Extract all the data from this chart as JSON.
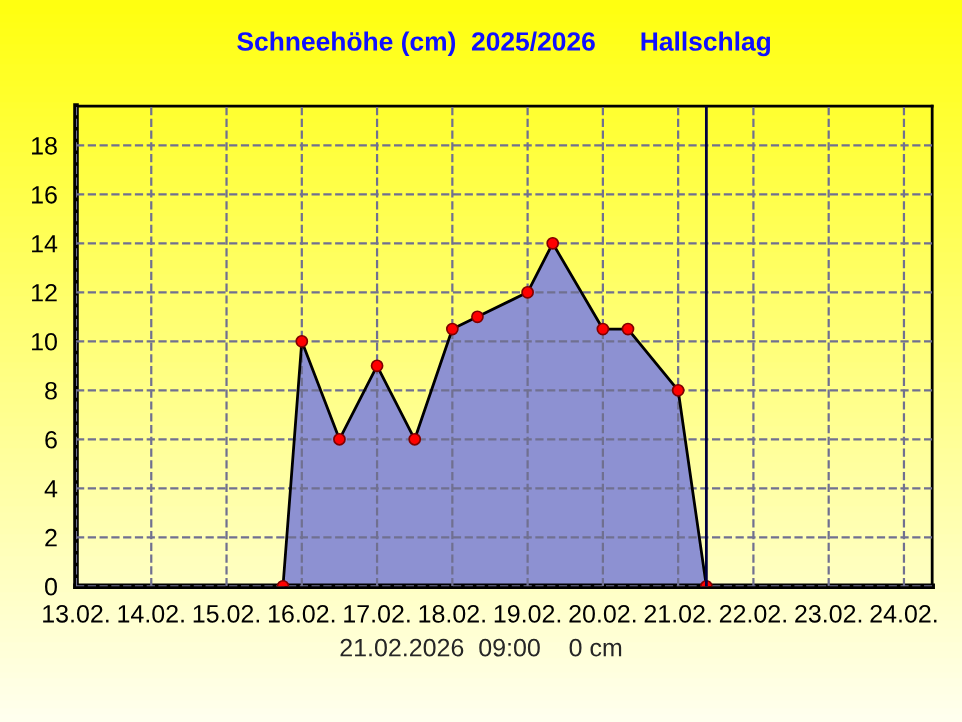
{
  "chart_data": {
    "type": "area",
    "title": "Schneehöhe (cm)  2025/2026      Hallschlag",
    "x": [
      "2026-02-15T18:00",
      "2026-02-16T00:00",
      "2026-02-16T12:00",
      "2026-02-17T00:00",
      "2026-02-17T12:00",
      "2026-02-18T00:00",
      "2026-02-18T08:00",
      "2026-02-19T00:00",
      "2026-02-19T08:00",
      "2026-02-20T00:00",
      "2026-02-20T08:00",
      "2026-02-21T00:00",
      "2026-02-21T09:00"
    ],
    "series": [
      {
        "color": "#8d91d2",
        "values": [
          0,
          10,
          6,
          9,
          6,
          10.5,
          11,
          12,
          14,
          10.5,
          10.5,
          8,
          0
        ]
      }
    ],
    "marker": "circle",
    "xlim": [
      "2026-02-13",
      "2026-02-24T09:00"
    ],
    "ylim": [
      0,
      19.6
    ],
    "xticks": [
      {
        "value": "2026-02-13",
        "label": "13.02."
      },
      {
        "value": "2026-02-14",
        "label": "14.02."
      },
      {
        "value": "2026-02-15",
        "label": "15.02."
      },
      {
        "value": "2026-02-16",
        "label": "16.02."
      },
      {
        "value": "2026-02-17",
        "label": "17.02."
      },
      {
        "value": "2026-02-18",
        "label": "18.02."
      },
      {
        "value": "2026-02-19",
        "label": "19.02."
      },
      {
        "value": "2026-02-20",
        "label": "20.02."
      },
      {
        "value": "2026-02-21",
        "label": "21.02."
      },
      {
        "value": "2026-02-22",
        "label": "22.02."
      },
      {
        "value": "2026-02-23",
        "label": "23.02."
      },
      {
        "value": "2026-02-24",
        "label": "24.02."
      }
    ],
    "yticks": [
      0,
      2,
      4,
      6,
      8,
      10,
      12,
      14,
      16,
      18
    ],
    "grid": true,
    "ref_lines": [
      {
        "axis": "x",
        "value": "2026-02-21T09:00",
        "label": null,
        "color": "#000040"
      }
    ],
    "annotations": [
      "21.02.2026  09:00    0 cm"
    ]
  }
}
